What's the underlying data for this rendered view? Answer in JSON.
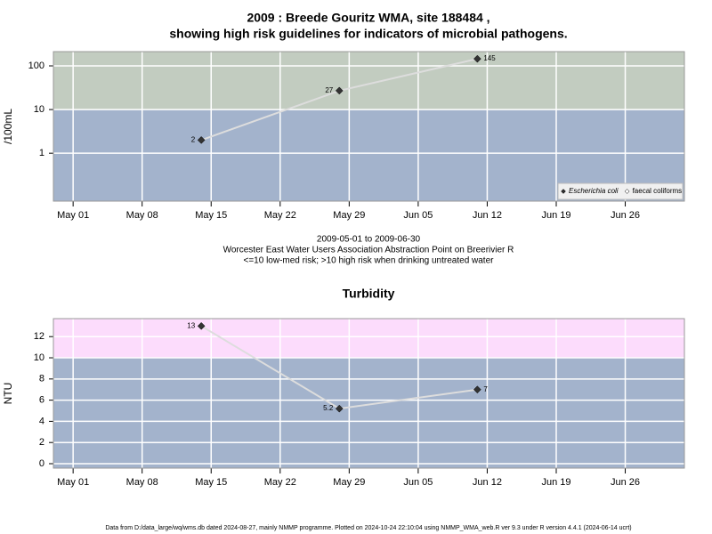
{
  "title": [
    "2009 : Breede Gouritz WMA, site 188484 ,",
    "showing high risk guidelines for indicators of microbial pathogens."
  ],
  "footer": "Data from D:/data_large/wq/wms.db dated 2024-08-27, mainly NMMP programme. Plotted on 2024-10-24 22:10:04 using NMMP_WMA_web.R ver 9.3 under R version 4.4.1 (2024-06-14 ucrt)",
  "chart_data": [
    {
      "type": "line",
      "y_label": "/100mL",
      "log_scale": true,
      "grid": true,
      "legend": "bottom-right",
      "x": [
        "2009-05-14",
        "2009-05-28",
        "2009-06-11"
      ],
      "xlim": [
        "2009-04-29",
        "2009-07-02"
      ],
      "xticks": [
        {
          "value": "2009-05-01",
          "label": "May 01"
        },
        {
          "value": "2009-05-08",
          "label": "May 08"
        },
        {
          "value": "2009-05-15",
          "label": "May 15"
        },
        {
          "value": "2009-05-22",
          "label": "May 22"
        },
        {
          "value": "2009-05-29",
          "label": "May 29"
        },
        {
          "value": "2009-06-05",
          "label": "Jun 05"
        },
        {
          "value": "2009-06-12",
          "label": "Jun 12"
        },
        {
          "value": "2009-06-19",
          "label": "Jun 19"
        },
        {
          "value": "2009-06-26",
          "label": "Jun 26"
        }
      ],
      "ylim": [
        0.08,
        212
      ],
      "yticks": [
        1,
        10,
        100
      ],
      "threshold": 10,
      "band_colors": {
        "below": "#a3b3cc",
        "above": "#c2ccc0"
      },
      "series": [
        {
          "name": "Escherichia coli",
          "color": "#333333",
          "line_color": "#dddddd",
          "values": [
            2,
            27,
            145
          ]
        },
        {
          "name": "faecal coliforms",
          "color": "#ffffff",
          "line_color": "#dddddd",
          "values": [
            null,
            null,
            null
          ]
        }
      ],
      "annotations": [
        "2009-05-01 to 2009-06-30",
        "Worcester East Water Users Association Abstraction Point on Breerivier R",
        "<=10 low-med risk; >10 high risk when drinking untreated water"
      ]
    },
    {
      "type": "line",
      "title": "Turbidity",
      "y_label": "NTU",
      "log_scale": false,
      "grid": true,
      "x": [
        "2009-05-14",
        "2009-05-28",
        "2009-06-11"
      ],
      "xlim": [
        "2009-04-29",
        "2009-07-02"
      ],
      "xticks": [
        {
          "value": "2009-05-01",
          "label": "May 01"
        },
        {
          "value": "2009-05-08",
          "label": "May 08"
        },
        {
          "value": "2009-05-15",
          "label": "May 15"
        },
        {
          "value": "2009-05-22",
          "label": "May 22"
        },
        {
          "value": "2009-05-29",
          "label": "May 29"
        },
        {
          "value": "2009-06-05",
          "label": "Jun 05"
        },
        {
          "value": "2009-06-12",
          "label": "Jun 12"
        },
        {
          "value": "2009-06-19",
          "label": "Jun 19"
        },
        {
          "value": "2009-06-26",
          "label": "Jun 26"
        }
      ],
      "ylim": [
        -0.42,
        13.7
      ],
      "yticks": [
        0,
        2,
        4,
        6,
        8,
        10,
        12
      ],
      "threshold": 10,
      "band_colors": {
        "below": "#a3b3cc",
        "above": "#fcdcfc"
      },
      "series": [
        {
          "name": "Turbidity",
          "color": "#333333",
          "line_color": "#dddddd",
          "values": [
            13,
            5.2,
            7
          ]
        }
      ]
    }
  ]
}
